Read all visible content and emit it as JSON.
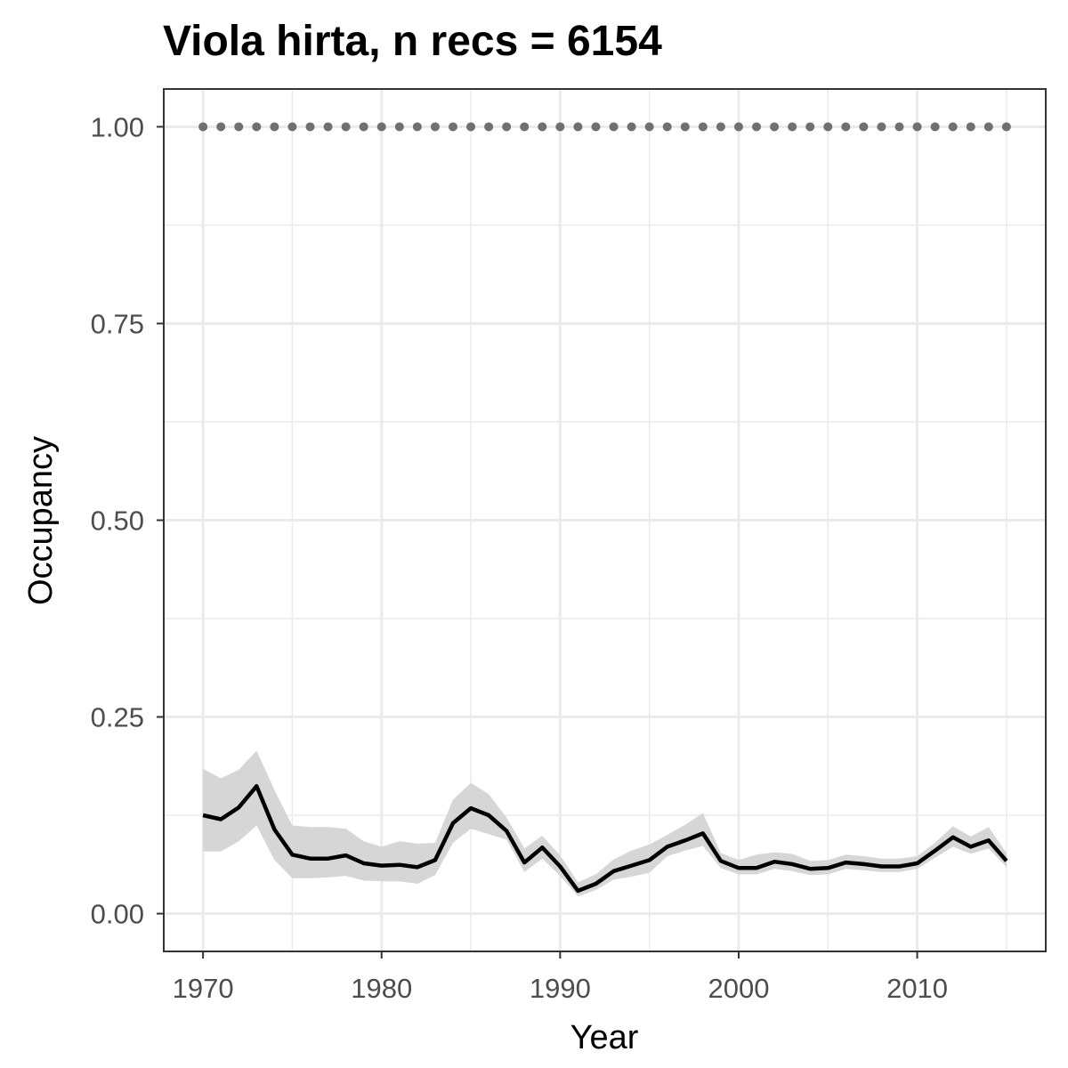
{
  "chart_data": {
    "type": "line",
    "title": "Viola hirta, n recs = 6154",
    "xlabel": "Year",
    "ylabel": "Occupancy",
    "xlim": [
      1967.8,
      2017.2
    ],
    "ylim": [
      -0.048,
      1.048
    ],
    "x_ticks": [
      1970,
      1980,
      1990,
      2000,
      2010
    ],
    "x_tick_labels": [
      "1970",
      "1980",
      "1990",
      "2000",
      "2010"
    ],
    "y_ticks": [
      0,
      0.25,
      0.5,
      0.75,
      1.0
    ],
    "y_tick_labels": [
      "0.00",
      "0.25",
      "0.50",
      "0.75",
      "1.00"
    ],
    "grid": true,
    "colors": {
      "line": "#000000",
      "ribbon": "#d6d6d6",
      "reference": "#707070",
      "grid": "#ebebeb",
      "border": "#333333"
    },
    "x": [
      1970,
      1971,
      1972,
      1973,
      1974,
      1975,
      1976,
      1977,
      1978,
      1979,
      1980,
      1981,
      1982,
      1983,
      1984,
      1985,
      1986,
      1987,
      1988,
      1989,
      1990,
      1991,
      1992,
      1993,
      1994,
      1995,
      1996,
      1997,
      1998,
      1999,
      2000,
      2001,
      2002,
      2003,
      2004,
      2005,
      2006,
      2007,
      2008,
      2009,
      2010,
      2011,
      2012,
      2013,
      2014,
      2015
    ],
    "series": [
      {
        "kind": "line",
        "values": [
          0.125,
          0.12,
          0.135,
          0.162,
          0.107,
          0.075,
          0.07,
          0.07,
          0.074,
          0.064,
          0.061,
          0.062,
          0.059,
          0.068,
          0.115,
          0.134,
          0.125,
          0.105,
          0.065,
          0.084,
          0.06,
          0.029,
          0.038,
          0.054,
          0.061,
          0.068,
          0.085,
          0.093,
          0.102,
          0.067,
          0.058,
          0.058,
          0.066,
          0.063,
          0.057,
          0.058,
          0.065,
          0.063,
          0.06,
          0.06,
          0.064,
          0.08,
          0.097,
          0.085,
          0.093,
          0.067
        ]
      },
      {
        "kind": "ribbon",
        "lower": [
          0.079,
          0.079,
          0.092,
          0.112,
          0.068,
          0.045,
          0.045,
          0.046,
          0.048,
          0.042,
          0.041,
          0.041,
          0.038,
          0.049,
          0.09,
          0.108,
          0.101,
          0.094,
          0.053,
          0.07,
          0.048,
          0.022,
          0.03,
          0.043,
          0.047,
          0.052,
          0.073,
          0.08,
          0.086,
          0.058,
          0.05,
          0.05,
          0.057,
          0.054,
          0.049,
          0.05,
          0.057,
          0.055,
          0.053,
          0.053,
          0.057,
          0.071,
          0.085,
          0.076,
          0.083,
          0.059
        ],
        "upper": [
          0.184,
          0.172,
          0.183,
          0.207,
          0.157,
          0.112,
          0.11,
          0.11,
          0.108,
          0.092,
          0.085,
          0.092,
          0.089,
          0.09,
          0.145,
          0.166,
          0.152,
          0.122,
          0.083,
          0.099,
          0.074,
          0.04,
          0.05,
          0.069,
          0.08,
          0.088,
          0.1,
          0.113,
          0.128,
          0.077,
          0.068,
          0.075,
          0.078,
          0.076,
          0.067,
          0.068,
          0.075,
          0.073,
          0.07,
          0.07,
          0.073,
          0.09,
          0.111,
          0.098,
          0.11,
          0.077
        ]
      },
      {
        "kind": "reference-points",
        "values": [
          1,
          1,
          1,
          1,
          1,
          1,
          1,
          1,
          1,
          1,
          1,
          1,
          1,
          1,
          1,
          1,
          1,
          1,
          1,
          1,
          1,
          1,
          1,
          1,
          1,
          1,
          1,
          1,
          1,
          1,
          1,
          1,
          1,
          1,
          1,
          1,
          1,
          1,
          1,
          1,
          1,
          1,
          1,
          1,
          1,
          1
        ]
      }
    ]
  }
}
